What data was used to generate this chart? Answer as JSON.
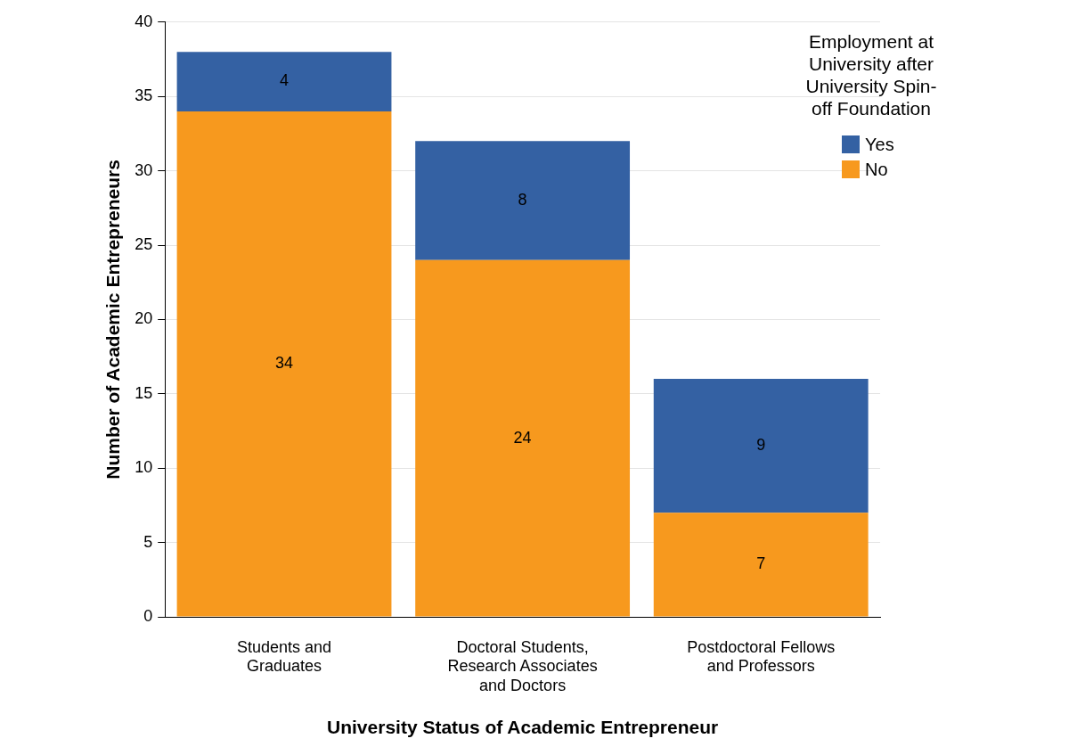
{
  "chart_data": {
    "type": "bar",
    "stacked": true,
    "xlabel": "University Status of Academic Entrepreneur",
    "ylabel": "Number of Academic Entrepreneurs",
    "legend_title": "Employment at University after University Spin-off Foundation",
    "categories": [
      "Students and Graduates",
      "Doctoral Students, Research Associates and Doctors",
      "Postdoctoral Fellows and Professors"
    ],
    "series": [
      {
        "name": "No",
        "color": "#f7991e",
        "values": [
          34,
          24,
          7
        ]
      },
      {
        "name": "Yes",
        "color": "#3461a3",
        "values": [
          4,
          8,
          9
        ]
      }
    ],
    "ylim": [
      0,
      40
    ],
    "yticks": [
      0,
      5,
      10,
      15,
      20,
      25,
      30,
      35,
      40
    ],
    "grid": "y",
    "legend": "top right",
    "data_labels": true
  }
}
